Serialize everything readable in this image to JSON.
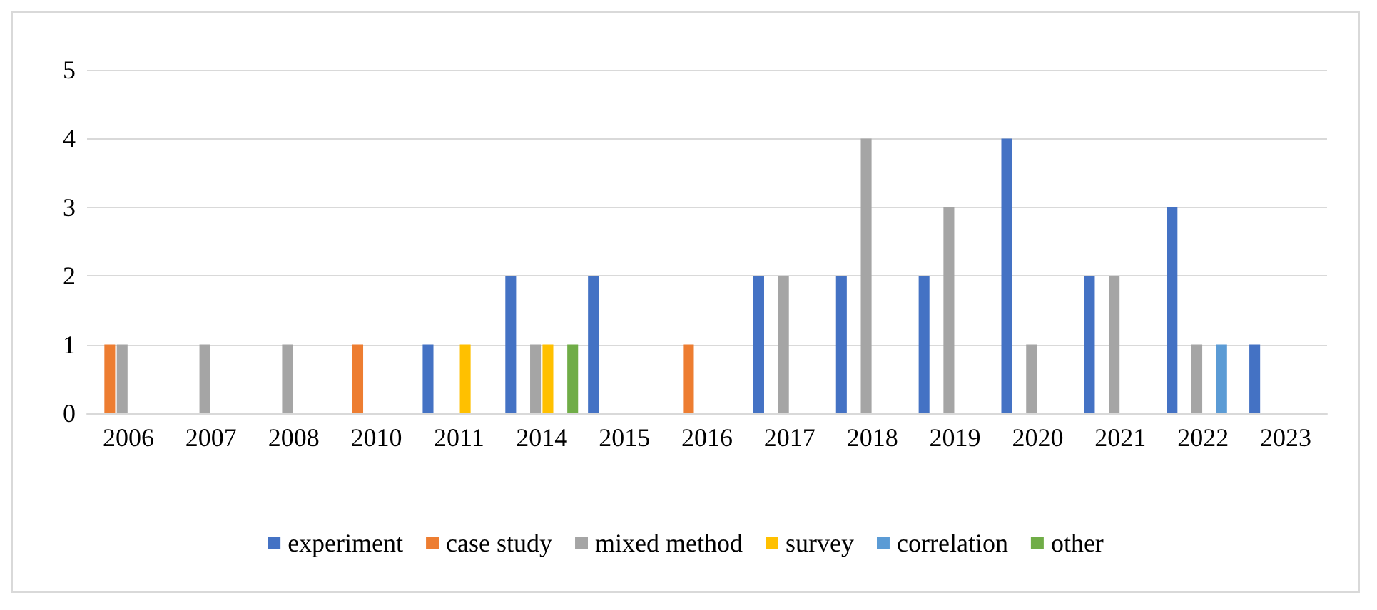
{
  "chart_data": {
    "type": "bar",
    "categories": [
      "2006",
      "2007",
      "2008",
      "2010",
      "2011",
      "2014",
      "2015",
      "2016",
      "2017",
      "2018",
      "2019",
      "2020",
      "2021",
      "2022",
      "2023"
    ],
    "series": [
      {
        "name": "experiment",
        "color": "#4472c4",
        "values": [
          0,
          0,
          0,
          0,
          1,
          2,
          2,
          0,
          2,
          2,
          2,
          4,
          2,
          3,
          1
        ]
      },
      {
        "name": "case study",
        "color": "#ed7d31",
        "values": [
          1,
          0,
          0,
          1,
          0,
          0,
          0,
          1,
          0,
          0,
          0,
          0,
          0,
          0,
          0
        ]
      },
      {
        "name": "mixed method",
        "color": "#a5a5a5",
        "values": [
          1,
          1,
          1,
          0,
          0,
          1,
          0,
          0,
          2,
          4,
          3,
          1,
          2,
          1,
          0
        ]
      },
      {
        "name": "survey",
        "color": "#ffc000",
        "values": [
          0,
          0,
          0,
          0,
          1,
          1,
          0,
          0,
          0,
          0,
          0,
          0,
          0,
          0,
          0
        ]
      },
      {
        "name": "correlation",
        "color": "#5b9bd5",
        "values": [
          0,
          0,
          0,
          0,
          0,
          0,
          0,
          0,
          0,
          0,
          0,
          0,
          0,
          1,
          0
        ]
      },
      {
        "name": "other",
        "color": "#70ad47",
        "values": [
          0,
          0,
          0,
          0,
          0,
          1,
          0,
          0,
          0,
          0,
          0,
          0,
          0,
          0,
          0
        ]
      }
    ],
    "ylim": [
      0,
      5
    ],
    "yticks": [
      0,
      1,
      2,
      3,
      4,
      5
    ],
    "grid": "y",
    "legend": "bottom"
  }
}
